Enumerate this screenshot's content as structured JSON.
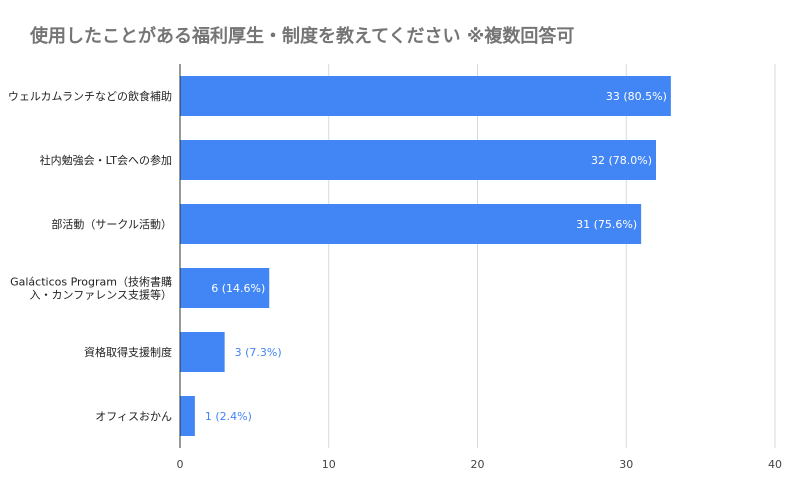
{
  "chart_data": {
    "type": "bar",
    "orientation": "horizontal",
    "title": "使用したことがある福利厚生・制度を教えてください ※複数回答可",
    "categories": [
      [
        "ウェルカムランチなどの飲食補助"
      ],
      [
        "社内勉強会・LT会への参加"
      ],
      [
        "部活動（サークル活動）"
      ],
      [
        "Galácticos Program（技術書購",
        "入・カンファレンス支援等）"
      ],
      [
        "資格取得支援制度"
      ],
      [
        "オフィスおかん"
      ]
    ],
    "values": [
      33,
      32,
      31,
      6,
      3,
      1
    ],
    "data_labels": [
      "33 (80.5%)",
      "32 (78.0%)",
      "31 (75.6%)",
      "6 (14.6%)",
      "3 (7.3%)",
      "1 (2.4%)"
    ],
    "xlim": [
      0,
      40
    ],
    "x_ticks": [
      "0",
      "10",
      "20",
      "30",
      "40"
    ],
    "grid": true,
    "bar_color": "#4285f4"
  }
}
